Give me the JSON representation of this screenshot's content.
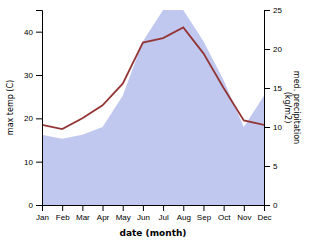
{
  "chart_data": {
    "type": "line",
    "categories": [
      "Jan",
      "Feb",
      "Mar",
      "Apr",
      "May",
      "Jun",
      "Jul",
      "Aug",
      "Sep",
      "Oct",
      "Nov",
      "Dec"
    ],
    "series": [
      {
        "type": "area",
        "axis": "y2",
        "color": "#c0c8f0",
        "values": [
          9,
          8.5,
          9,
          10,
          14,
          21,
          25,
          25,
          21,
          16,
          10,
          14
        ]
      },
      {
        "type": "line",
        "color": "#943535",
        "values": [
          18.5,
          17.5,
          20,
          23,
          28,
          37.5,
          38.5,
          41,
          35,
          27,
          19.5,
          18.5
        ]
      }
    ],
    "x_label": "date (month)",
    "y_label": "max temp (C)",
    "y2_label": "med. precipitation\n(kg/m2)",
    "ylim": [
      0,
      45
    ],
    "yticks": [
      0,
      10,
      20,
      30,
      40
    ],
    "y2lim": [
      0,
      25
    ],
    "y2ticks": [
      0,
      5,
      10,
      15,
      20,
      25
    ],
    "grid": false
  }
}
